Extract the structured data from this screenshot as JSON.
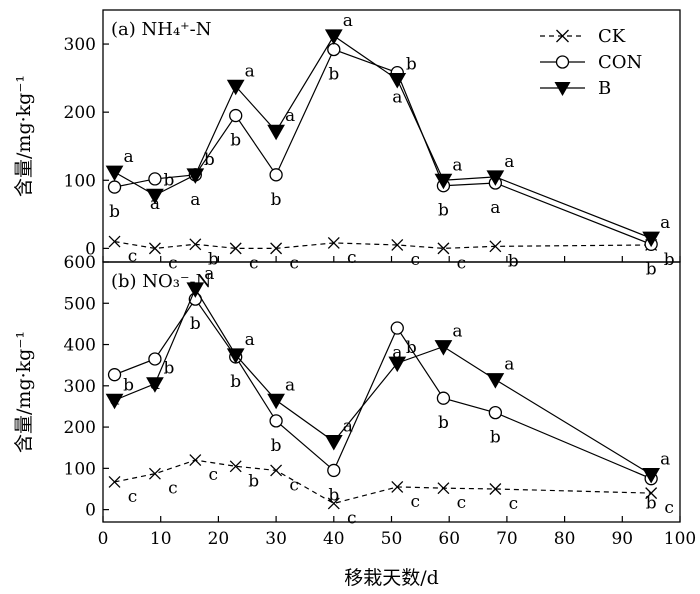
{
  "chart_data": [
    {
      "type": "line",
      "panel": "a",
      "panel_label": "(a) NH₄⁺-N",
      "title": "",
      "xlabel": "移栽天数/d",
      "ylabel": "含量/mg·kg⁻¹",
      "xlim": [
        0,
        100
      ],
      "ylim": [
        -20,
        350
      ],
      "x_ticks": [
        "0",
        "10",
        "20",
        "30",
        "40",
        "50",
        "60",
        "70",
        "80",
        "90",
        "100"
      ],
      "y_ticks": [
        "0",
        "100",
        "200",
        "300"
      ],
      "legend_position": "top-right",
      "series": [
        {
          "name": "CK",
          "marker": "x",
          "line": "dashed",
          "x": [
            2,
            9,
            16,
            23,
            30,
            40,
            51,
            59,
            68,
            95
          ],
          "y": [
            10,
            0,
            6,
            0,
            0,
            8,
            5,
            0,
            3,
            5
          ],
          "letters": [
            "c",
            "c",
            "b",
            "c",
            "c",
            "c",
            "c",
            "c",
            "b",
            "b"
          ]
        },
        {
          "name": "CON",
          "marker": "open-circle",
          "line": "solid",
          "x": [
            2,
            9,
            16,
            23,
            30,
            40,
            51,
            59,
            68,
            95
          ],
          "y": [
            90,
            102,
            108,
            195,
            108,
            292,
            258,
            92,
            96,
            6
          ],
          "letters": [
            "b",
            "a",
            "a",
            "b",
            "b",
            "b",
            "a",
            "b",
            "a",
            "b"
          ]
        },
        {
          "name": "B",
          "marker": "filled-triangle",
          "line": "solid",
          "x": [
            2,
            9,
            16,
            23,
            30,
            40,
            51,
            59,
            68,
            95
          ],
          "y": [
            112,
            78,
            108,
            238,
            172,
            312,
            248,
            100,
            105,
            15
          ],
          "letters": [
            "a",
            "b",
            "b",
            "a",
            "a",
            "a",
            "b",
            "a",
            "a",
            "a"
          ]
        }
      ]
    },
    {
      "type": "line",
      "panel": "b",
      "panel_label": "(b) NO₃⁻-N",
      "title": "",
      "xlabel": "移栽天数/d",
      "ylabel": "含量/mg·kg⁻¹",
      "xlim": [
        0,
        100
      ],
      "ylim": [
        -30,
        600
      ],
      "x_ticks": [
        "0",
        "10",
        "20",
        "30",
        "40",
        "50",
        "60",
        "70",
        "80",
        "90",
        "100"
      ],
      "y_ticks": [
        "0",
        "100",
        "200",
        "300",
        "400",
        "500",
        "600"
      ],
      "series": [
        {
          "name": "CK",
          "marker": "x",
          "line": "dashed",
          "x": [
            2,
            9,
            16,
            23,
            30,
            40,
            51,
            59,
            68,
            95
          ],
          "y": [
            67,
            87,
            120,
            105,
            95,
            15,
            55,
            52,
            50,
            40
          ],
          "letters": [
            "c",
            "c",
            "c",
            "b",
            "c",
            "c",
            "c",
            "c",
            "c",
            "c"
          ]
        },
        {
          "name": "CON",
          "marker": "open-circle",
          "line": "solid",
          "x": [
            2,
            9,
            16,
            23,
            30,
            40,
            51,
            59,
            68,
            95
          ],
          "y": [
            327,
            365,
            510,
            370,
            215,
            95,
            440,
            270,
            235,
            75
          ],
          "letters": [
            "a",
            "a",
            "b",
            "b",
            "b",
            "b",
            "a",
            "b",
            "b",
            "b"
          ]
        },
        {
          "name": "B",
          "marker": "filled-triangle",
          "line": "solid",
          "x": [
            2,
            9,
            16,
            23,
            30,
            40,
            51,
            59,
            68,
            95
          ],
          "y": [
            265,
            305,
            535,
            375,
            265,
            165,
            355,
            395,
            315,
            85
          ],
          "letters": [
            "b",
            "b",
            "a",
            "a",
            "a",
            "a",
            "b",
            "a",
            "a",
            "a"
          ]
        }
      ]
    }
  ]
}
